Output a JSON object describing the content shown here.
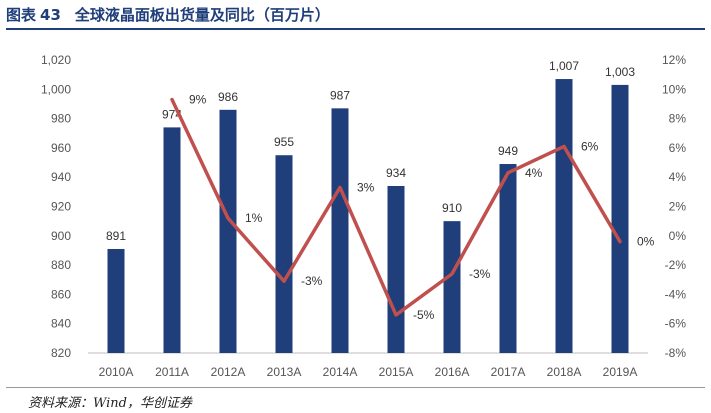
{
  "title": {
    "prefix": "图表",
    "number": "43",
    "text": "全球液晶面板出货量及同比（百万片）"
  },
  "source": "资料来源：Wind，华创证券",
  "colors": {
    "bar": "#1f3e7a",
    "line": "#c0504d",
    "title": "#1f3e7a"
  },
  "chart_data": {
    "type": "bar",
    "categories": [
      "2010A",
      "2011A",
      "2012A",
      "2013A",
      "2014A",
      "2015A",
      "2016A",
      "2017A",
      "2018A",
      "2019A"
    ],
    "series": [
      {
        "name": "出货量",
        "type": "bar",
        "axis": "left",
        "values": [
          891,
          974,
          986,
          955,
          987,
          934,
          910,
          949,
          1007,
          1003
        ],
        "labels": [
          "891",
          "974",
          "986",
          "955",
          "987",
          "934",
          "910",
          "949",
          "1,007",
          "1,003"
        ]
      },
      {
        "name": "同比",
        "type": "line",
        "axis": "right",
        "values": [
          null,
          9.3,
          1.2,
          -3.1,
          3.3,
          -5.4,
          -2.6,
          4.3,
          6.1,
          -0.4
        ],
        "labels": [
          null,
          "9%",
          "1%",
          "-3%",
          "3%",
          "-5%",
          "-3%",
          "4%",
          "6%",
          "0%"
        ]
      }
    ],
    "y_left": {
      "min": 820,
      "max": 1020,
      "ticks": [
        820,
        840,
        860,
        880,
        900,
        920,
        940,
        960,
        980,
        1000,
        1020
      ],
      "tick_labels": [
        "820",
        "840",
        "860",
        "880",
        "900",
        "920",
        "940",
        "960",
        "980",
        "1,000",
        "1,020"
      ]
    },
    "y_right": {
      "min": -8,
      "max": 12,
      "ticks": [
        -8,
        -6,
        -4,
        -2,
        0,
        2,
        4,
        6,
        8,
        10,
        12
      ],
      "tick_labels": [
        "-8%",
        "-6%",
        "-4%",
        "-2%",
        "0%",
        "2%",
        "4%",
        "6%",
        "8%",
        "10%",
        "12%"
      ]
    },
    "grid": false,
    "legend": "none"
  }
}
